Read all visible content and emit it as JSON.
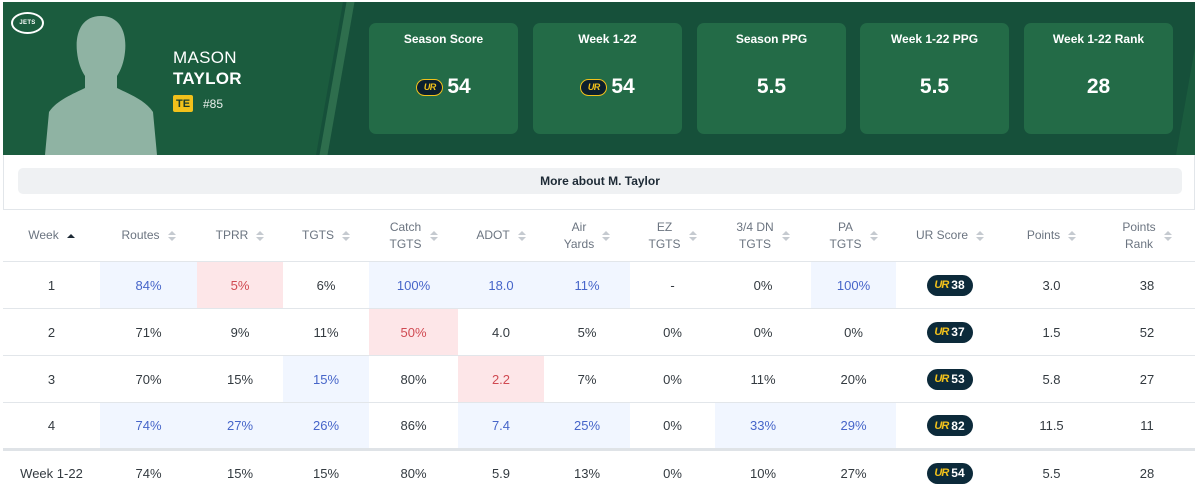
{
  "team": {
    "logo_text": "JETS"
  },
  "player": {
    "first_name": "MASON",
    "last_name": "TAYLOR",
    "position": "TE",
    "jersey": "#85"
  },
  "stat_cards": [
    {
      "label": "Season Score",
      "value": "54",
      "has_ur_logo": true
    },
    {
      "label": "Week 1-22",
      "value": "54",
      "has_ur_logo": true
    },
    {
      "label": "Season PPG",
      "value": "5.5",
      "has_ur_logo": false
    },
    {
      "label": "Week 1-22 PPG",
      "value": "5.5",
      "has_ur_logo": false
    },
    {
      "label": "Week 1-22 Rank",
      "value": "28",
      "has_ur_logo": false
    }
  ],
  "ur_logo_text": "UR",
  "more_button": "More about M. Taylor",
  "table": {
    "headers": [
      {
        "l1": "Week",
        "l2": ""
      },
      {
        "l1": "Routes",
        "l2": ""
      },
      {
        "l1": "TPRR",
        "l2": ""
      },
      {
        "l1": "TGTS",
        "l2": ""
      },
      {
        "l1": "Catch",
        "l2": "TGTS"
      },
      {
        "l1": "ADOT",
        "l2": ""
      },
      {
        "l1": "Air",
        "l2": "Yards"
      },
      {
        "l1": "EZ",
        "l2": "TGTS"
      },
      {
        "l1": "3/4 DN",
        "l2": "TGTS"
      },
      {
        "l1": "PA",
        "l2": "TGTS"
      },
      {
        "l1": "UR Score",
        "l2": ""
      },
      {
        "l1": "Points",
        "l2": ""
      },
      {
        "l1": "Points",
        "l2": "Rank"
      }
    ],
    "rows": [
      {
        "week": "1",
        "routes": "84%",
        "tprr": "5%",
        "tgts": "6%",
        "catch": "100%",
        "adot": "18.0",
        "air": "11%",
        "ez": "-",
        "dn": "0%",
        "pa": "100%",
        "ur": "38",
        "points": "3.0",
        "rank": "38"
      },
      {
        "week": "2",
        "routes": "71%",
        "tprr": "9%",
        "tgts": "11%",
        "catch": "50%",
        "adot": "4.0",
        "air": "5%",
        "ez": "0%",
        "dn": "0%",
        "pa": "0%",
        "ur": "37",
        "points": "1.5",
        "rank": "52"
      },
      {
        "week": "3",
        "routes": "70%",
        "tprr": "15%",
        "tgts": "15%",
        "catch": "80%",
        "adot": "2.2",
        "air": "7%",
        "ez": "0%",
        "dn": "11%",
        "pa": "20%",
        "ur": "53",
        "points": "5.8",
        "rank": "27"
      },
      {
        "week": "4",
        "routes": "74%",
        "tprr": "27%",
        "tgts": "26%",
        "catch": "86%",
        "adot": "7.4",
        "air": "25%",
        "ez": "0%",
        "dn": "33%",
        "pa": "29%",
        "ur": "82",
        "points": "11.5",
        "rank": "11"
      }
    ],
    "total": {
      "week": "Week 1-22",
      "routes": "74%",
      "tprr": "15%",
      "tgts": "15%",
      "catch": "80%",
      "adot": "5.9",
      "air": "13%",
      "ez": "0%",
      "dn": "10%",
      "pa": "27%",
      "ur": "54",
      "points": "5.5",
      "rank": "28"
    },
    "cell_tints": {
      "0": {
        "routes": "blue",
        "tprr": "red",
        "catch": "blue",
        "adot": "blue",
        "air": "blue",
        "pa": "blue"
      },
      "1": {
        "catch": "red"
      },
      "2": {
        "tgts": "blue",
        "adot": "red"
      },
      "3": {
        "routes": "blue",
        "tprr": "blue",
        "tgts": "blue",
        "adot": "blue",
        "air": "blue",
        "dn": "blue",
        "pa": "blue"
      }
    }
  }
}
